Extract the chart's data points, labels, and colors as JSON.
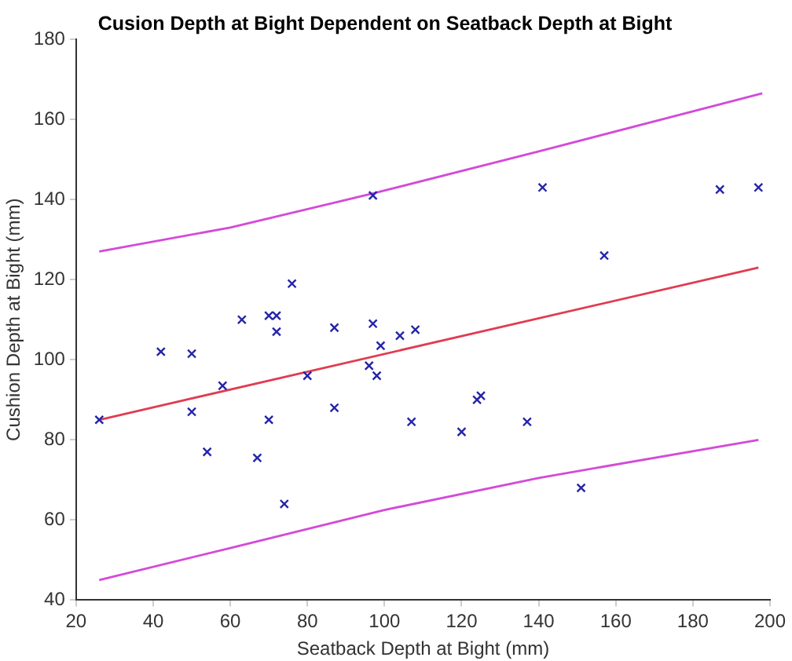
{
  "chart_data": {
    "type": "scatter",
    "title": "Cusion Depth at Bight Dependent on Seatback Depth at Bight",
    "xlabel": "Seatback Depth at Bight (mm)",
    "ylabel": "Cushion Depth at Bight (mm)",
    "xlim": [
      20,
      200
    ],
    "xticks": [
      20,
      40,
      60,
      80,
      100,
      120,
      140,
      160,
      180,
      200
    ],
    "ylim": [
      40,
      180
    ],
    "yticks": [
      40,
      60,
      80,
      100,
      120,
      140,
      160,
      180
    ],
    "grid": false,
    "legend": false,
    "series": [
      {
        "type": "scatter",
        "color": "#2424a8",
        "marker": "cross",
        "x": [
          26,
          42,
          50,
          50,
          54,
          58,
          63,
          67,
          70,
          70,
          72,
          72,
          74,
          76,
          80,
          87,
          87,
          96,
          97,
          97,
          98,
          99,
          104,
          108,
          107,
          120,
          124,
          125,
          137,
          141,
          151,
          157,
          187,
          197
        ],
        "values": [
          85,
          102,
          101.5,
          87,
          77,
          93.5,
          110,
          75.5,
          85,
          111,
          111,
          107,
          64,
          119,
          96,
          108,
          88,
          98.5,
          109,
          141,
          96,
          103.5,
          106,
          107.5,
          84.5,
          82,
          90,
          91,
          84.5,
          143,
          68,
          126,
          142.5,
          143
        ]
      },
      {
        "type": "line",
        "color": "#e03c50",
        "marker": "none",
        "line_style": "solid",
        "x": [
          26,
          197
        ],
        "values": [
          85,
          123
        ]
      },
      {
        "type": "line",
        "color": "#d44ad8",
        "marker": "none",
        "line_style": "solid",
        "x": [
          26,
          60,
          97,
          140,
          198
        ],
        "values": [
          127,
          133,
          141.5,
          152,
          166.5
        ]
      },
      {
        "type": "line",
        "color": "#d44ad8",
        "marker": "none",
        "line_style": "solid",
        "x": [
          26,
          60,
          100,
          140,
          197
        ],
        "values": [
          45,
          53,
          62.5,
          70.5,
          80
        ]
      }
    ]
  }
}
